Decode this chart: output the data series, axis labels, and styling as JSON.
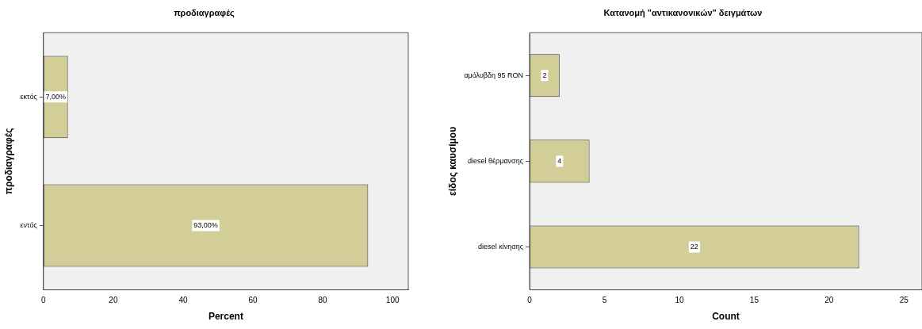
{
  "chart_data": [
    {
      "type": "bar",
      "orientation": "horizontal",
      "title": "προδιαγραφές",
      "xlabel": "Percent",
      "ylabel": "προδιαγραφές",
      "categories": [
        "εκτός",
        "εντός"
      ],
      "values": [
        7,
        93
      ],
      "value_labels": [
        "7,00%",
        "93,00%"
      ],
      "color": "#d3ce98",
      "xlim": [
        0,
        104.5
      ],
      "xticks": [
        0,
        20,
        40,
        60,
        80,
        100
      ],
      "grid": false,
      "legend": false
    },
    {
      "type": "bar",
      "orientation": "horizontal",
      "title": "Κατανομή \"αντικανονικών\" δειγμάτων",
      "xlabel": "Count",
      "ylabel": "είδος καυσίμου",
      "categories": [
        "αμόλυβδη 95 RON",
        "diesel θέρμανσης",
        "diesel κίνησης"
      ],
      "values": [
        2,
        4,
        22
      ],
      "data_labels": true,
      "color": "#d3ce98",
      "xlim": [
        0,
        26.2
      ],
      "xticks": [
        0,
        5,
        10,
        15,
        20,
        25
      ],
      "grid": false,
      "legend": false
    }
  ]
}
